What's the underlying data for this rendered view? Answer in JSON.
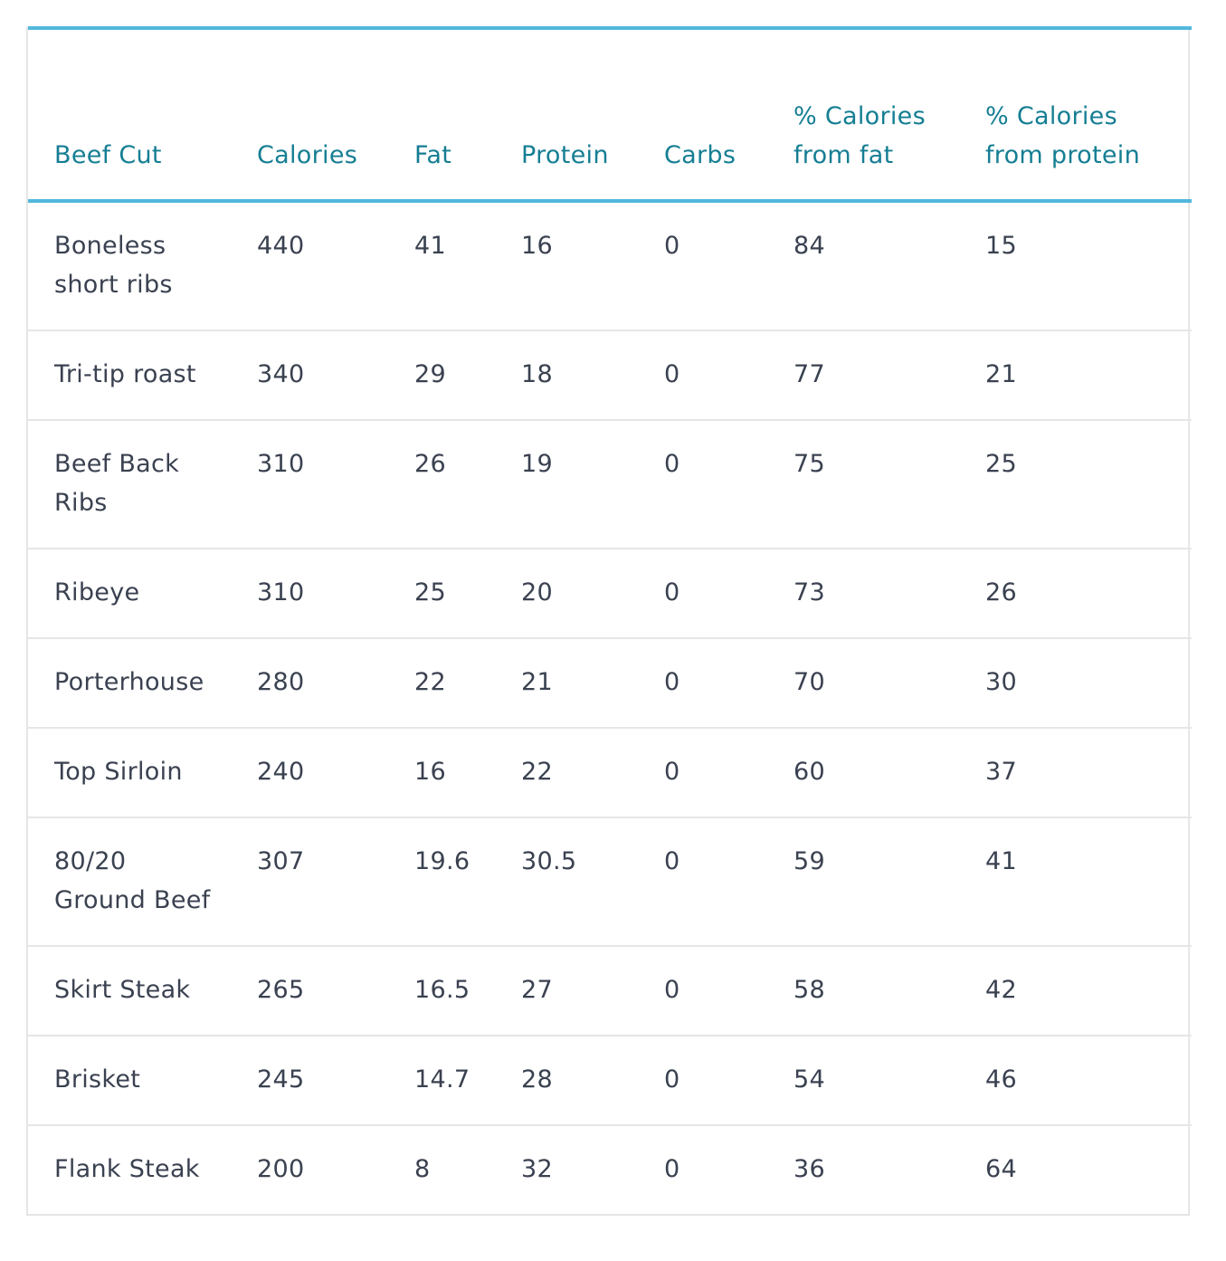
{
  "table": {
    "headers": [
      "Beef Cut",
      "Calories",
      "Fat",
      "Protein",
      "Carbs",
      "% Calories from fat",
      "% Calories from protein"
    ],
    "rows": [
      [
        "Boneless short ribs",
        "440",
        "41",
        "16",
        "0",
        "84",
        "15"
      ],
      [
        "Tri-tip roast",
        "340",
        "29",
        "18",
        "0",
        "77",
        "21"
      ],
      [
        "Beef Back Ribs",
        "310",
        "26",
        "19",
        "0",
        "75",
        "25"
      ],
      [
        "Ribeye",
        "310",
        "25",
        "20",
        "0",
        "73",
        "26"
      ],
      [
        "Porterhouse",
        "280",
        "22",
        "21",
        "0",
        "70",
        "30"
      ],
      [
        "Top Sirloin",
        "240",
        "16",
        "22",
        "0",
        "60",
        "37"
      ],
      [
        "80/20 Ground Beef",
        "307",
        "19.6",
        "30.5",
        "0",
        "59",
        "41"
      ],
      [
        "Skirt Steak",
        "265",
        "16.5",
        "27",
        "0",
        "58",
        "42"
      ],
      [
        "Brisket",
        "245",
        "14.7",
        "28",
        "0",
        "54",
        "46"
      ],
      [
        "Flank Steak",
        "200",
        "8",
        "32",
        "0",
        "36",
        "64"
      ]
    ]
  },
  "colors": {
    "header_text": "#157e93",
    "header_rule": "#52b8dc",
    "body_text": "#3a4150",
    "row_divider": "#e6e6e6"
  }
}
